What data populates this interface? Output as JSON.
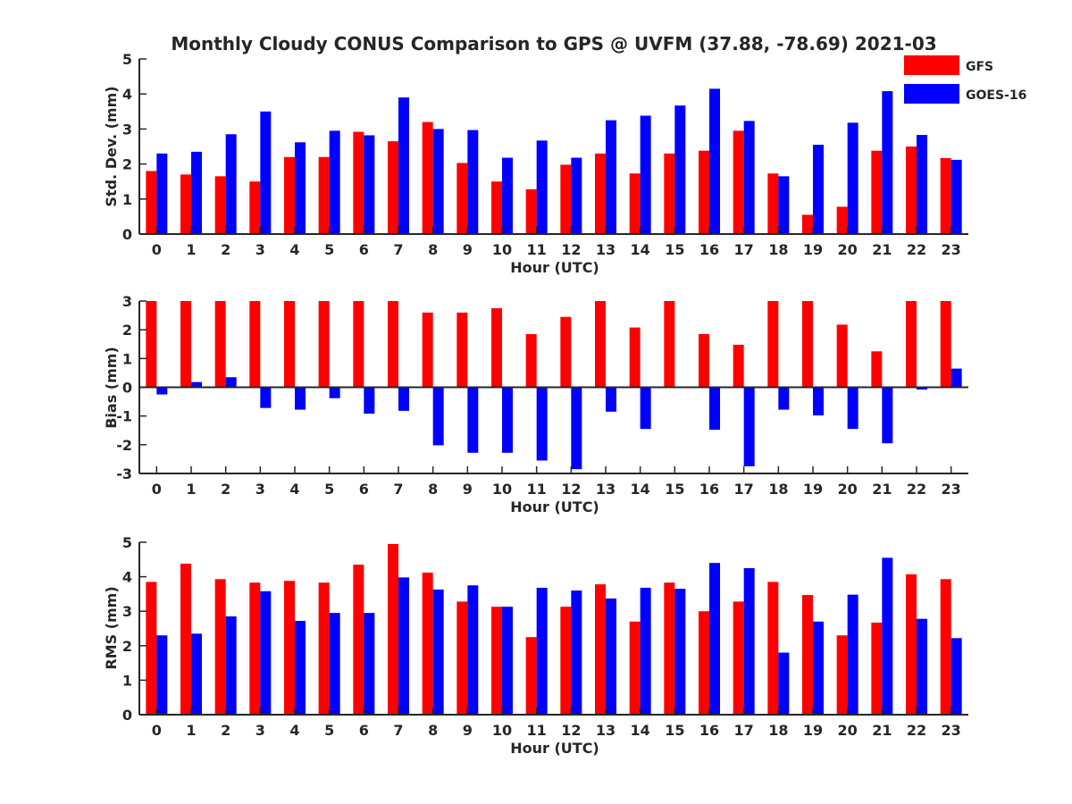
{
  "title": "Monthly Cloudy CONUS Comparison to GPS @ UVFM (37.88, -78.69) 2021-03",
  "legend": [
    {
      "name": "GFS",
      "color": "#ff0000"
    },
    {
      "name": "GOES-16",
      "color": "#0000ff"
    }
  ],
  "chart_data": [
    {
      "type": "bar",
      "title": "Monthly Cloudy CONUS Comparison to GPS @ UVFM (37.88, -78.69) 2021-03",
      "xlabel": "Hour (UTC)",
      "ylabel": "Std. Dev. (mm)",
      "ylim": [
        0,
        5
      ],
      "yticks": [
        0,
        1,
        2,
        3,
        4,
        5
      ],
      "categories": [
        "0",
        "1",
        "2",
        "3",
        "4",
        "5",
        "6",
        "7",
        "8",
        "9",
        "10",
        "11",
        "12",
        "13",
        "14",
        "15",
        "16",
        "17",
        "18",
        "19",
        "20",
        "21",
        "22",
        "23"
      ],
      "legend_position": "top-right",
      "grid": false,
      "series": [
        {
          "name": "GFS",
          "color": "#ff0000",
          "values": [
            1.8,
            1.7,
            1.65,
            1.5,
            2.2,
            2.2,
            2.92,
            2.65,
            3.2,
            2.03,
            1.5,
            1.28,
            1.98,
            2.3,
            1.73,
            2.3,
            2.38,
            2.95,
            1.73,
            0.55,
            0.78,
            2.38,
            2.5,
            2.17
          ]
        },
        {
          "name": "GOES-16",
          "color": "#0000ff",
          "values": [
            2.3,
            2.35,
            2.85,
            3.5,
            2.62,
            2.95,
            2.82,
            3.9,
            3.0,
            2.97,
            2.18,
            2.67,
            2.18,
            3.25,
            3.38,
            3.67,
            4.15,
            3.23,
            1.65,
            2.55,
            3.18,
            4.08,
            2.83,
            2.12
          ]
        }
      ]
    },
    {
      "type": "bar",
      "xlabel": "Hour (UTC)",
      "ylabel": "Bias (mm)",
      "ylim": [
        -3,
        3
      ],
      "yticks": [
        -3,
        -2,
        -1,
        0,
        1,
        2,
        3
      ],
      "categories": [
        "0",
        "1",
        "2",
        "3",
        "4",
        "5",
        "6",
        "7",
        "8",
        "9",
        "10",
        "11",
        "12",
        "13",
        "14",
        "15",
        "16",
        "17",
        "18",
        "19",
        "20",
        "21",
        "22",
        "23"
      ],
      "grid": false,
      "series": [
        {
          "name": "GFS",
          "color": "#ff0000",
          "values": [
            3.0,
            3.0,
            3.0,
            3.0,
            3.0,
            3.0,
            3.0,
            3.0,
            2.6,
            2.6,
            2.75,
            1.85,
            2.45,
            3.0,
            2.08,
            3.0,
            1.85,
            1.48,
            3.0,
            3.0,
            2.18,
            1.25,
            3.0,
            3.0
          ]
        },
        {
          "name": "GOES-16",
          "color": "#0000ff",
          "values": [
            -0.25,
            0.18,
            0.35,
            -0.72,
            -0.78,
            -0.38,
            -0.92,
            -0.82,
            -2.02,
            -2.28,
            -2.28,
            -2.55,
            -2.85,
            -0.85,
            -1.45,
            0.0,
            -1.48,
            -2.75,
            -0.78,
            -0.98,
            -1.45,
            -1.95,
            -0.08,
            0.65
          ]
        }
      ]
    },
    {
      "type": "bar",
      "xlabel": "Hour (UTC)",
      "ylabel": "RMS (mm)",
      "ylim": [
        0,
        5
      ],
      "yticks": [
        0,
        1,
        2,
        3,
        4,
        5
      ],
      "categories": [
        "0",
        "1",
        "2",
        "3",
        "4",
        "5",
        "6",
        "7",
        "8",
        "9",
        "10",
        "11",
        "12",
        "13",
        "14",
        "15",
        "16",
        "17",
        "18",
        "19",
        "20",
        "21",
        "22",
        "23"
      ],
      "grid": false,
      "series": [
        {
          "name": "GFS",
          "color": "#ff0000",
          "values": [
            3.85,
            4.38,
            3.93,
            3.83,
            3.88,
            3.83,
            4.35,
            4.95,
            4.12,
            3.28,
            3.13,
            2.25,
            3.13,
            3.78,
            2.7,
            3.83,
            3.0,
            3.28,
            3.85,
            3.47,
            2.3,
            2.67,
            4.07,
            3.93
          ]
        },
        {
          "name": "GOES-16",
          "color": "#0000ff",
          "values": [
            2.3,
            2.35,
            2.85,
            3.58,
            2.72,
            2.95,
            2.95,
            3.98,
            3.63,
            3.75,
            3.13,
            3.68,
            3.6,
            3.37,
            3.68,
            3.65,
            4.4,
            4.25,
            1.8,
            2.7,
            3.48,
            4.55,
            2.78,
            2.22
          ]
        }
      ]
    }
  ]
}
